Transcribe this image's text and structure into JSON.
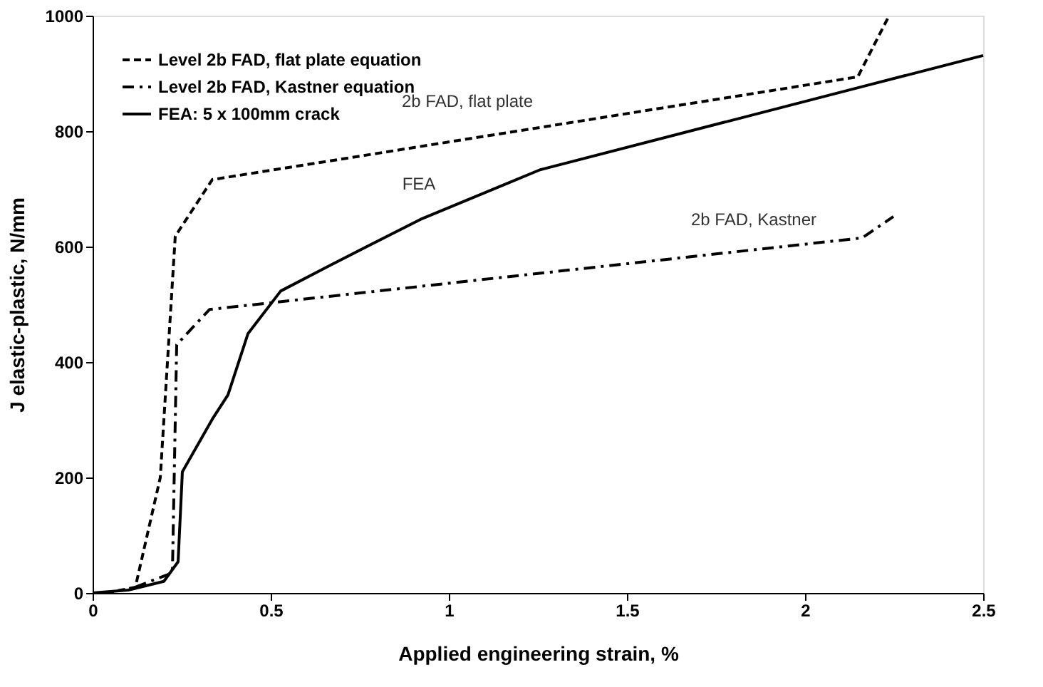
{
  "chart_data": {
    "type": "line",
    "xlabel": "Applied engineering strain, %",
    "ylabel": "J elastic-plastic, N/mm",
    "xlim": [
      0,
      2.5
    ],
    "xticks": [
      0,
      0.5,
      1,
      1.5,
      2,
      2.5
    ],
    "ylim": [
      0,
      1000
    ],
    "yticks": [
      0,
      200,
      400,
      600,
      800,
      1000
    ],
    "grid": false,
    "legend": "top left",
    "marker": "none",
    "series": [
      {
        "name": "Level 2b FAD, flat plate equation",
        "color": "#000000",
        "line_style": "dashed",
        "x": [
          0.04,
          0.12,
          0.19,
          0.232,
          0.336,
          2.148,
          2.236
        ],
        "values": [
          0,
          10,
          200,
          618,
          716,
          894,
          1000
        ]
      },
      {
        "name": "Level 2b FAD, Kastner equation",
        "color": "#000000",
        "line_style": "dashdot",
        "x": [
          0.12,
          0.224,
          0.236,
          0.328,
          2.16,
          2.248
        ],
        "values": [
          10,
          35,
          430,
          491,
          615,
          652
        ]
      },
      {
        "name": "FEA: 5 x 100mm crack",
        "color": "#000000",
        "line_style": "solid",
        "x": [
          0,
          0.1,
          0.2,
          0.24,
          0.252,
          0.336,
          0.38,
          0.436,
          0.528,
          0.668,
          0.92,
          1.256,
          2.16,
          2.5
        ],
        "values": [
          0,
          5,
          20,
          54,
          210,
          301,
          343,
          449,
          523,
          568,
          647,
          733,
          877,
          931
        ]
      }
    ],
    "annotations": [
      "2b FAD, flat plate",
      "FEA",
      "2b FAD, Kastner"
    ]
  }
}
